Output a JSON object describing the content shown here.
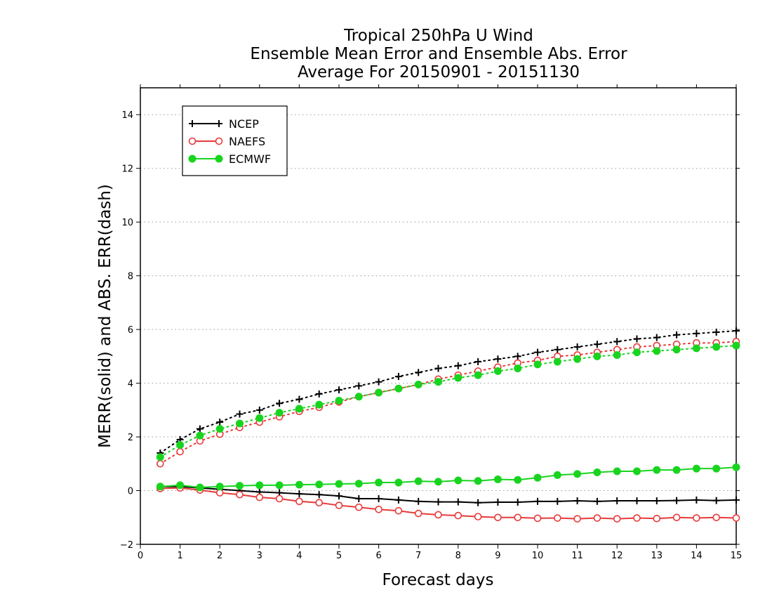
{
  "chart_data": {
    "type": "line",
    "title": [
      "Tropical 250hPa U Wind",
      "Ensemble Mean Error and Ensemble Abs. Error",
      "Average For 20150901 - 20151130"
    ],
    "xlabel": "Forecast days",
    "ylabel": "MERR(solid) and ABS. ERR(dash)",
    "xlim": [
      0,
      15
    ],
    "ylim": [
      -2,
      15
    ],
    "xticks": [
      "0",
      "1",
      "2",
      "3",
      "4",
      "5",
      "6",
      "7",
      "8",
      "9",
      "10",
      "11",
      "12",
      "13",
      "14",
      "15"
    ],
    "yticks": [
      "−2",
      "0",
      "2",
      "4",
      "6",
      "8",
      "10",
      "12",
      "14"
    ],
    "ytick_values": [
      -2,
      0,
      2,
      4,
      6,
      8,
      10,
      12,
      14
    ],
    "grid": "horizontal dotted",
    "legend_position": "top-left",
    "x": [
      0.5,
      1,
      1.5,
      2,
      2.5,
      3,
      3.5,
      4,
      4.5,
      5,
      5.5,
      6,
      6.5,
      7,
      7.5,
      8,
      8.5,
      9,
      9.5,
      10,
      10.5,
      11,
      11.5,
      12,
      12.5,
      13,
      13.5,
      14,
      14.5,
      15
    ],
    "series": [
      {
        "name": "NCEP",
        "color": "#000000",
        "marker": "plus",
        "merr": [
          0.15,
          0.15,
          0.1,
          0.05,
          0.0,
          -0.05,
          -0.08,
          -0.12,
          -0.15,
          -0.2,
          -0.3,
          -0.3,
          -0.35,
          -0.4,
          -0.42,
          -0.42,
          -0.45,
          -0.43,
          -0.43,
          -0.4,
          -0.4,
          -0.38,
          -0.4,
          -0.38,
          -0.38,
          -0.38,
          -0.37,
          -0.35,
          -0.37,
          -0.35
        ],
        "abs_err": [
          1.4,
          1.9,
          2.3,
          2.55,
          2.85,
          3.0,
          3.25,
          3.4,
          3.6,
          3.75,
          3.9,
          4.05,
          4.25,
          4.4,
          4.55,
          4.65,
          4.8,
          4.9,
          5.0,
          5.15,
          5.25,
          5.35,
          5.45,
          5.55,
          5.65,
          5.7,
          5.8,
          5.85,
          5.9,
          5.95
        ]
      },
      {
        "name": "NAEFS",
        "color": "#e83a3a",
        "marker": "open-circle",
        "merr": [
          0.08,
          0.1,
          0.02,
          -0.08,
          -0.15,
          -0.25,
          -0.3,
          -0.4,
          -0.45,
          -0.55,
          -0.62,
          -0.7,
          -0.75,
          -0.85,
          -0.9,
          -0.93,
          -0.97,
          -1.0,
          -1.0,
          -1.03,
          -1.02,
          -1.05,
          -1.02,
          -1.05,
          -1.02,
          -1.04,
          -1.0,
          -1.02,
          -1.0,
          -1.02
        ],
        "abs_err": [
          1.0,
          1.45,
          1.85,
          2.1,
          2.35,
          2.55,
          2.75,
          2.95,
          3.1,
          3.3,
          3.5,
          3.65,
          3.8,
          3.95,
          4.15,
          4.3,
          4.45,
          4.6,
          4.75,
          4.85,
          5.0,
          5.05,
          5.15,
          5.25,
          5.35,
          5.4,
          5.45,
          5.5,
          5.5,
          5.55
        ]
      },
      {
        "name": "ECMWF",
        "color": "#19d41f",
        "marker": "filled-circle",
        "merr": [
          0.15,
          0.2,
          0.12,
          0.15,
          0.18,
          0.2,
          0.2,
          0.22,
          0.23,
          0.25,
          0.26,
          0.3,
          0.3,
          0.35,
          0.33,
          0.38,
          0.36,
          0.42,
          0.4,
          0.48,
          0.58,
          0.62,
          0.68,
          0.72,
          0.72,
          0.77,
          0.77,
          0.82,
          0.82,
          0.87
        ],
        "abs_err": [
          1.25,
          1.7,
          2.05,
          2.3,
          2.5,
          2.7,
          2.9,
          3.05,
          3.2,
          3.35,
          3.5,
          3.65,
          3.8,
          3.95,
          4.05,
          4.2,
          4.3,
          4.45,
          4.55,
          4.7,
          4.8,
          4.9,
          5.0,
          5.05,
          5.15,
          5.2,
          5.25,
          5.3,
          5.35,
          5.4
        ]
      }
    ]
  }
}
